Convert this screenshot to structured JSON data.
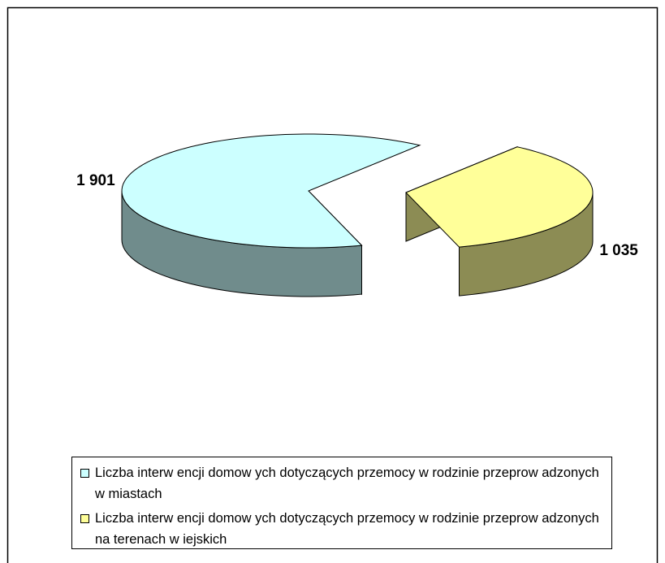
{
  "chart_data": {
    "type": "pie",
    "categories": [
      "Liczba interw encji domow ych dotyczących przemocy w rodzinie przeprow adzonych w miastach",
      "Liczba interw encji domow ych dotyczących przemocy w rodzinie przeprow adzonych na terenach w iejskich"
    ],
    "values": [
      1901,
      1035
    ],
    "value_labels": [
      "1 901",
      "1 035"
    ],
    "colors": [
      "#ccffff",
      "#ffff99"
    ],
    "legend": "bottom"
  }
}
